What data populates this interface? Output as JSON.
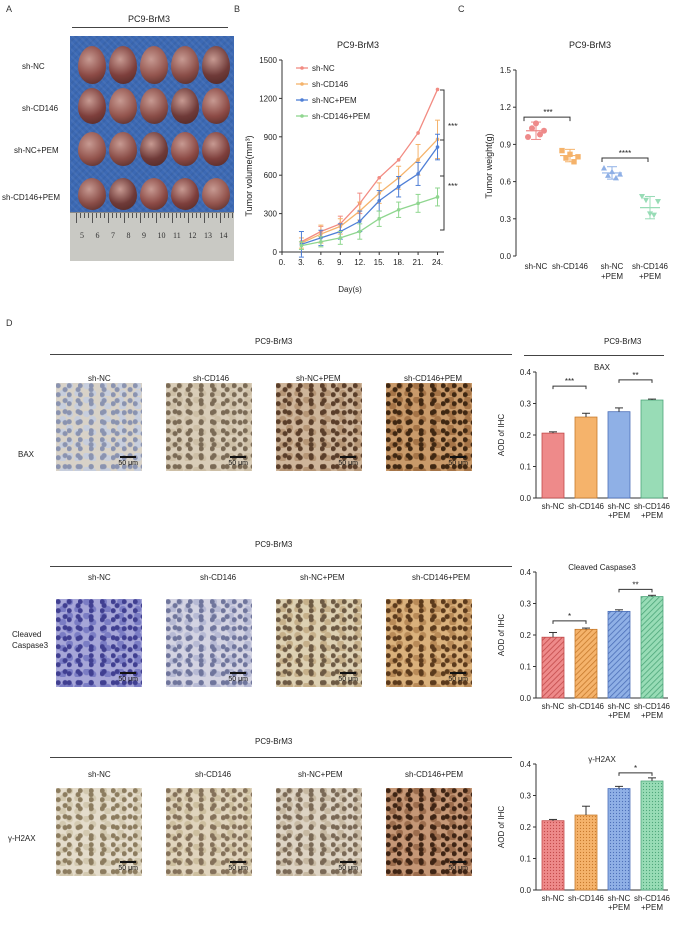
{
  "panel_labels": {
    "a": "A",
    "b": "B",
    "c": "C",
    "d": "D"
  },
  "colors": {
    "ctrl": "#ee8a8a",
    "cd146": "#f5b36b",
    "pem": "#8fb0e6",
    "combo": "#98dcb6"
  },
  "panelA": {
    "title": "PC9-BrM3",
    "rows": [
      "sh-NC",
      "sh-CD146",
      "sh-NC+PEM",
      "sh-CD146+PEM"
    ],
    "ruler_ticks": [
      "5",
      "6",
      "7",
      "8",
      "9",
      "10",
      "11",
      "12",
      "13",
      "14"
    ]
  },
  "panelB": {
    "title": "PC9-BrM3",
    "ylabel": "Tumor volume(mm³)",
    "xlabel": "Day(s)",
    "yticks": [
      "0",
      "300",
      "600",
      "900",
      "1200",
      "1500"
    ],
    "xticks": [
      "0.",
      "3.",
      "6.",
      "9.",
      "12.",
      "15.",
      "18.",
      "21.",
      "24."
    ],
    "sig_top": "****",
    "sig_bottom": "****"
  },
  "panelC": {
    "title": "PC9-BrM3",
    "ylabel": "Tumor weight(g)",
    "yticks": [
      "0.0",
      "0.3",
      "0.6",
      "0.9",
      "1.2",
      "1.5"
    ],
    "groups": [
      {
        "l1": "sh-NC",
        "l2": ""
      },
      {
        "l1": "sh-CD146",
        "l2": ""
      },
      {
        "l1": "sh-NC",
        "l2": "+PEM"
      },
      {
        "l1": "sh-CD146",
        "l2": "+PEM"
      }
    ],
    "sig1": "***",
    "sig2": "****"
  },
  "panelD": {
    "title": "PC9-BrM3",
    "cols": [
      "sh-NC",
      "sh-CD146",
      "sh-NC+PEM",
      "sh-CD146+PEM"
    ],
    "scale": "50 μm",
    "rows": [
      {
        "title": "PC9-BrM3",
        "label": "BAX",
        "label2": ""
      },
      {
        "title": "PC9-BrM3",
        "label": "Cleaved",
        "label2": "Caspase3"
      },
      {
        "title": "PC9-BrM3",
        "label": "γ-H2AX",
        "label2": ""
      }
    ],
    "bar_section_title": "PC9-BrM3",
    "bar_ylabel": "AOD of IHC",
    "bar_yticks": [
      "0.0",
      "0.1",
      "0.2",
      "0.3",
      "0.4"
    ],
    "bar_groups": [
      {
        "l1": "sh-NC",
        "l2": ""
      },
      {
        "l1": "sh-CD146",
        "l2": ""
      },
      {
        "l1": "sh-NC",
        "l2": "+PEM"
      },
      {
        "l1": "sh-CD146",
        "l2": "+PEM"
      }
    ],
    "bar_titles": [
      "BAX",
      "Cleaved Caspase3",
      "γ-H2AX"
    ],
    "bar_sigs": [
      [
        "***",
        "**"
      ],
      [
        "*",
        "**"
      ],
      [
        "*"
      ]
    ]
  },
  "chart_data": [
    {
      "type": "line",
      "panel": "B",
      "title": "PC9-BrM3",
      "xlabel": "Day(s)",
      "ylabel": "Tumor volume(mm³)",
      "x": [
        3,
        6,
        9,
        12,
        15,
        18,
        21,
        24
      ],
      "xlim": [
        0,
        25
      ],
      "ylim": [
        0,
        1500
      ],
      "series": [
        {
          "name": "sh-NC",
          "color": "#f28b82",
          "values": [
            80,
            160,
            220,
            380,
            580,
            720,
            930,
            1270
          ],
          "errors": [
            0,
            40,
            60,
            80,
            0,
            0,
            0,
            0
          ]
        },
        {
          "name": "sh-CD146",
          "color": "#f5b36b",
          "values": [
            70,
            140,
            200,
            320,
            460,
            580,
            720,
            880
          ],
          "errors": [
            40,
            70,
            60,
            70,
            80,
            90,
            120,
            150
          ]
        },
        {
          "name": "sh-NC+PEM",
          "color": "#4f7fd6",
          "values": [
            60,
            110,
            160,
            240,
            400,
            510,
            610,
            820
          ],
          "errors": [
            100,
            60,
            60,
            80,
            80,
            80,
            90,
            100
          ]
        },
        {
          "name": "sh-CD146+PEM",
          "color": "#8fd68f",
          "values": [
            50,
            80,
            110,
            160,
            260,
            330,
            380,
            430
          ],
          "errors": [
            30,
            40,
            50,
            60,
            60,
            60,
            70,
            70
          ]
        }
      ]
    },
    {
      "type": "scatter",
      "panel": "C",
      "title": "PC9-BrM3",
      "ylabel": "Tumor weight(g)",
      "categories": [
        "sh-NC",
        "sh-CD146",
        "sh-NC+PEM",
        "sh-CD146+PEM"
      ],
      "ylim": [
        0,
        1.5
      ],
      "means": [
        1.01,
        0.81,
        0.67,
        0.39
      ],
      "sd": [
        0.07,
        0.05,
        0.05,
        0.09
      ],
      "points": [
        [
          0.96,
          1.03,
          1.07,
          0.98,
          1.01
        ],
        [
          0.85,
          0.79,
          0.82,
          0.76,
          0.8
        ],
        [
          0.71,
          0.65,
          0.68,
          0.63,
          0.66
        ],
        [
          0.48,
          0.45,
          0.34,
          0.33,
          0.44
        ]
      ],
      "colors": [
        "#ee8a8a",
        "#f5b36b",
        "#8fb0e6",
        "#98dcb6"
      ]
    },
    {
      "type": "bar",
      "panel": "D",
      "title": "BAX",
      "ylabel": "AOD of IHC",
      "categories": [
        "sh-NC",
        "sh-CD146",
        "sh-NC+PEM",
        "sh-CD146+PEM"
      ],
      "values": [
        0.206,
        0.257,
        0.274,
        0.311
      ],
      "errors": [
        0.004,
        0.012,
        0.012,
        0.003
      ],
      "ylim": [
        0,
        0.4
      ]
    },
    {
      "type": "bar",
      "panel": "D",
      "title": "Cleaved Caspase3",
      "ylabel": "AOD of IHC",
      "categories": [
        "sh-NC",
        "sh-CD146",
        "sh-NC+PEM",
        "sh-CD146+PEM"
      ],
      "values": [
        0.193,
        0.218,
        0.275,
        0.322
      ],
      "errors": [
        0.015,
        0.004,
        0.005,
        0.004
      ],
      "ylim": [
        0,
        0.4
      ]
    },
    {
      "type": "bar",
      "panel": "D",
      "title": "γ-H2AX",
      "ylabel": "AOD of IHC",
      "categories": [
        "sh-NC",
        "sh-CD146",
        "sh-NC+PEM",
        "sh-CD146+PEM"
      ],
      "values": [
        0.22,
        0.238,
        0.322,
        0.346
      ],
      "errors": [
        0.004,
        0.028,
        0.007,
        0.01
      ],
      "ylim": [
        0,
        0.4
      ]
    }
  ]
}
